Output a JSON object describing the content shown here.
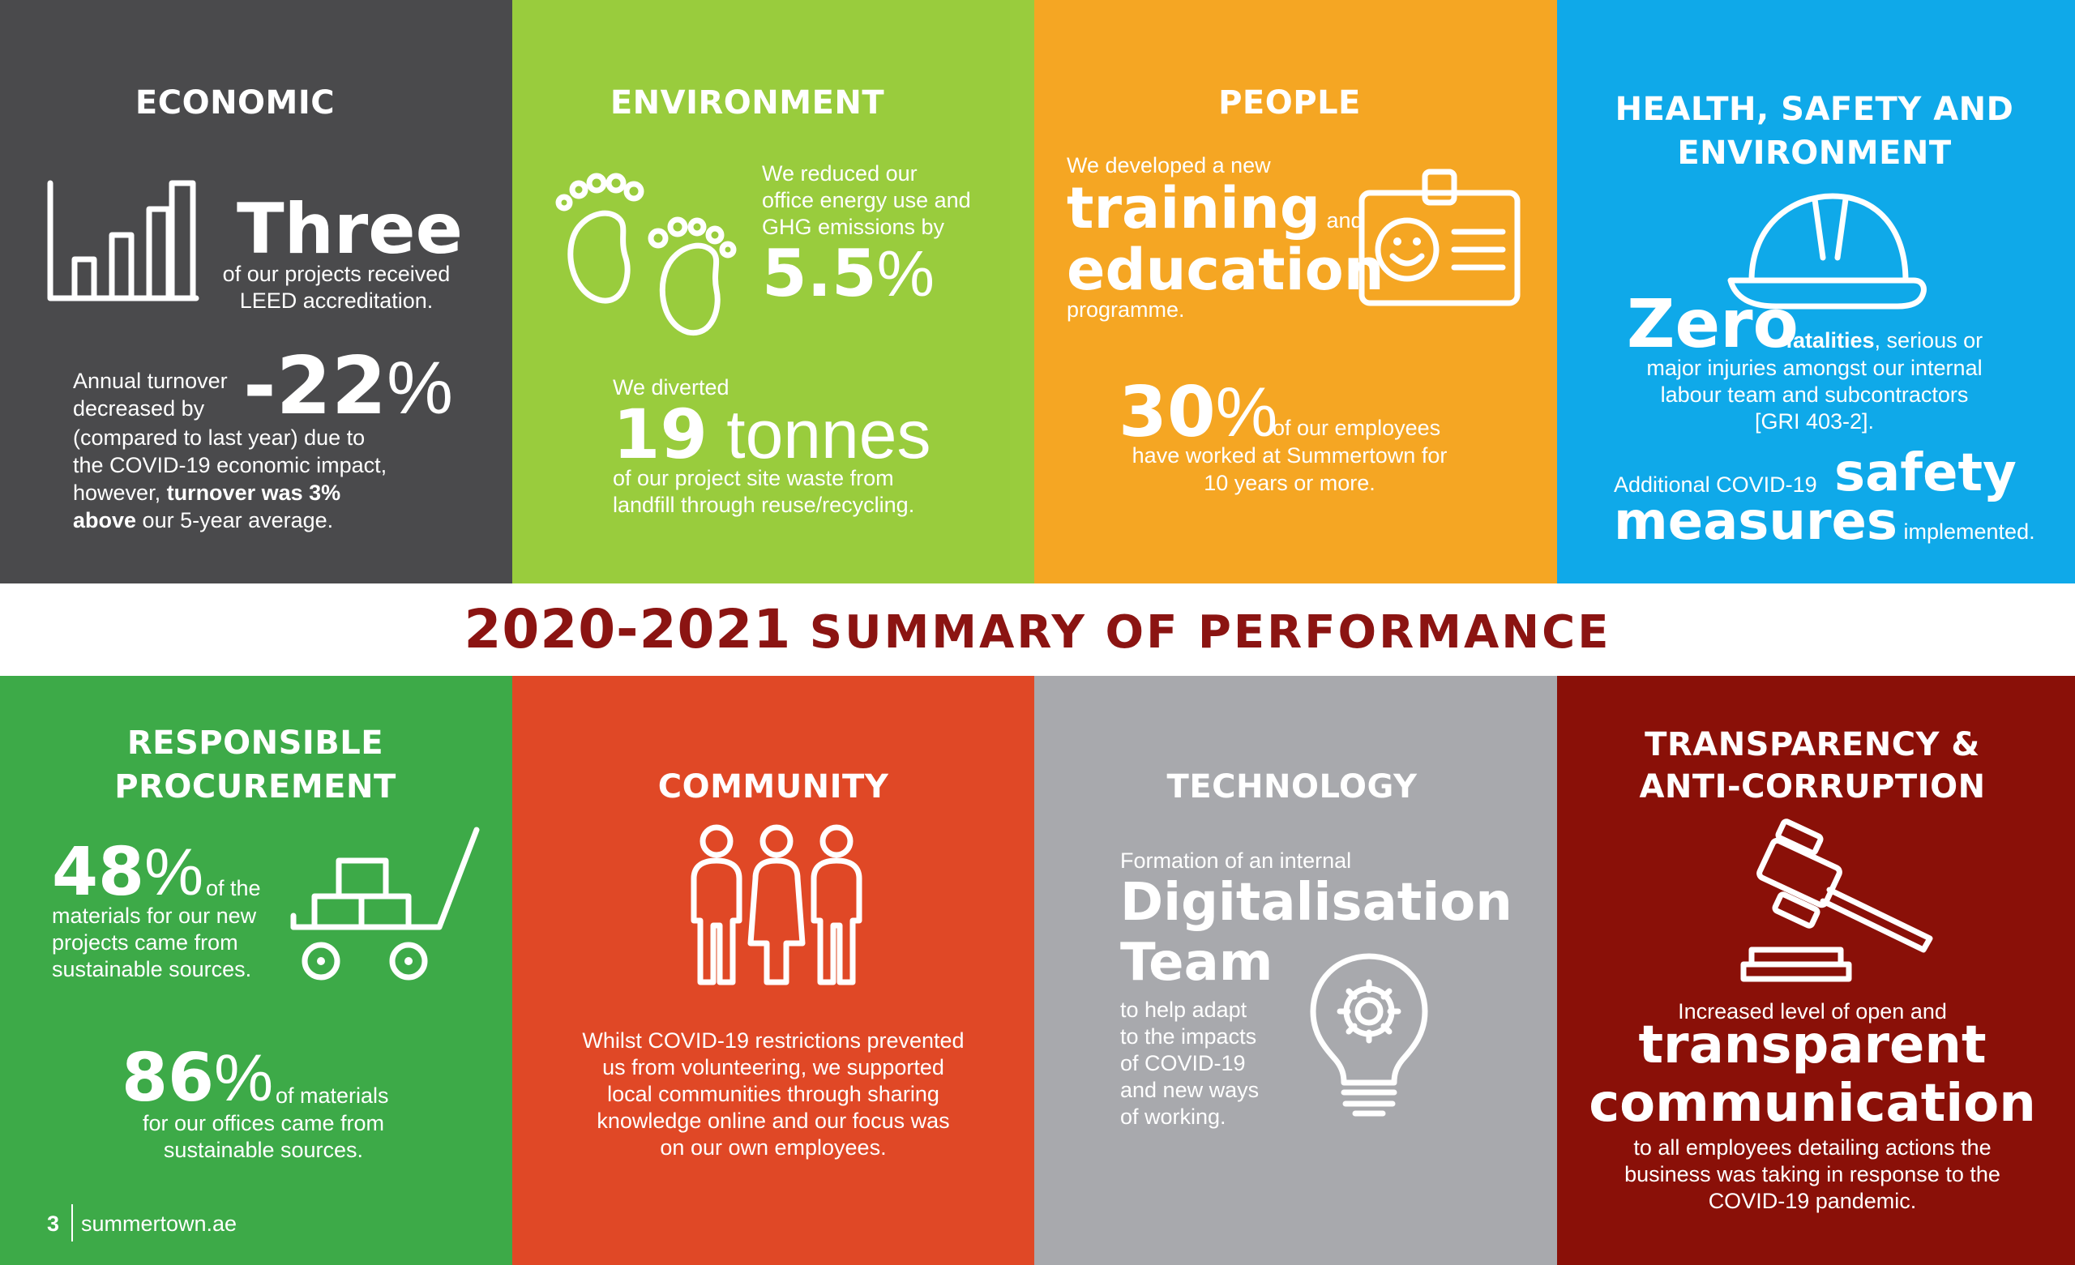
{
  "economic": {
    "heading": "ECONOMIC",
    "stat_word": "Three",
    "stat_text_1": "of our projects received",
    "stat_text_2": "LEED accreditation.",
    "turnover_intro_1": "Annual turnover",
    "turnover_intro_2": "decreased by",
    "turnover_value": "-22",
    "turnover_unit": "%",
    "body_1": "(compared to last year) due to",
    "body_2": "the COVID-19 economic impact,",
    "body_3a": "however, ",
    "body_3b": "turnover was 3%",
    "body_4a": "above",
    "body_4b": " our 5-year average."
  },
  "environment": {
    "heading": "ENVIRONMENT",
    "energy_1": "We reduced our",
    "energy_2": "office energy use and",
    "energy_3": "GHG emissions by",
    "energy_value": "5.5",
    "energy_unit": "%",
    "waste_intro": "We diverted",
    "waste_value": "19",
    "waste_unit": " tonnes",
    "waste_1": "of our project site waste from",
    "waste_2": "landfill through reuse/recycling."
  },
  "people": {
    "heading": "PEOPLE",
    "intro": "We developed a new",
    "word_1": "training",
    "word_and": " and",
    "word_2": "education",
    "suffix": "programme.",
    "pct_value": "30",
    "pct_unit": "%",
    "pct_text_1": " of our employees",
    "pct_text_2": "have worked at Summertown for",
    "pct_text_3": "10 years or more."
  },
  "hse": {
    "heading_1": "HEALTH, SAFETY AND",
    "heading_2": "ENVIRONMENT",
    "zero": "Zero",
    "fatal_bold": "fatalities",
    "fatal_rest": ", serious or",
    "line_2": "major injuries amongst our internal",
    "line_3": "labour team and subcontractors",
    "line_4": "[GRI 403-2].",
    "covid_intro": "Additional COVID-19 ",
    "covid_word_1": "safety",
    "covid_word_2": "measures",
    "covid_suffix": " implemented."
  },
  "banner": {
    "years": "2020-2021",
    "title": " SUMMARY OF PERFORMANCE"
  },
  "procurement": {
    "heading_1": "RESPONSIBLE",
    "heading_2": "PROCUREMENT",
    "pct1_value": "48",
    "pct1_unit": "%",
    "pct1_text_1": " of the",
    "pct1_text_2": "materials for our new",
    "pct1_text_3": "projects came from",
    "pct1_text_4": "sustainable sources.",
    "pct2_value": "86",
    "pct2_unit": "%",
    "pct2_text_1": " of materials",
    "pct2_text_2": "for our offices came from",
    "pct2_text_3": "sustainable sources.",
    "page_number": "3",
    "site": "summertown.ae"
  },
  "community": {
    "heading": "COMMUNITY",
    "line_1": "Whilst COVID-19 restrictions prevented",
    "line_2": "us from volunteering, we supported",
    "line_3": "local communities through sharing",
    "line_4": "knowledge online and our focus was",
    "line_5": "on our own employees."
  },
  "technology": {
    "heading": "TECHNOLOGY",
    "intro": "Formation of an internal",
    "word_1": "Digitalisation",
    "word_2": "Team",
    "line_1": "to help adapt",
    "line_2": "to the impacts",
    "line_3": "of COVID-19",
    "line_4": "and new ways",
    "line_5": "of working."
  },
  "transparency": {
    "heading_1": "TRANSPARENCY &",
    "heading_2": "ANTI-CORRUPTION",
    "intro": "Increased level of open and",
    "word_1": "transparent",
    "word_2": "communication",
    "line_1": "to all employees detailing actions the",
    "line_2": "business was taking in response to the",
    "line_3": "COVID-19 pandemic."
  }
}
